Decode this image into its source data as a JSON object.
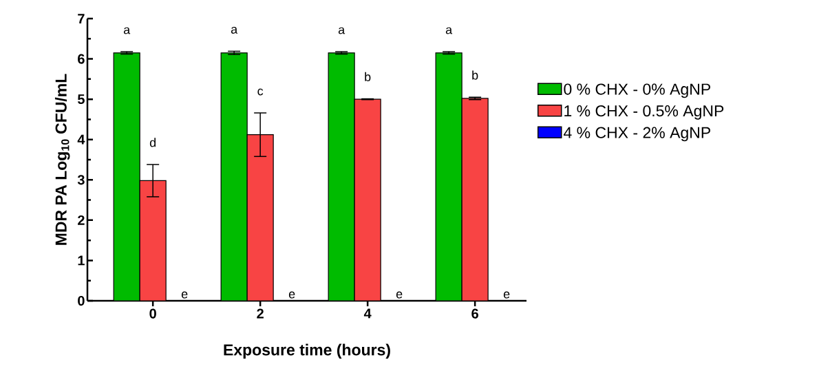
{
  "chart_data": {
    "type": "bar",
    "xlabel": "Exposure time (hours)",
    "ylabel": "MDR PA Log$_{10}$ CFU/mL",
    "categories": [
      "0",
      "2",
      "4",
      "6"
    ],
    "series": [
      {
        "name": "0 % CHX - 0% AgNP",
        "color": "#00bb00",
        "values": [
          6.15,
          6.15,
          6.15,
          6.15
        ],
        "errors": [
          0.03,
          0.04,
          0.03,
          0.03
        ]
      },
      {
        "name": "1 % CHX - 0.5% AgNP",
        "color": "#f84444",
        "values": [
          2.98,
          4.12,
          5.0,
          5.02
        ],
        "errors": [
          0.4,
          0.54,
          0.01,
          0.03
        ]
      },
      {
        "name": "4 % CHX - 2% AgNP",
        "color": "#0000ff",
        "values": [
          0,
          0,
          0,
          0
        ],
        "errors": [
          null,
          null,
          null,
          null
        ]
      }
    ],
    "ylim": [
      0,
      7
    ],
    "yticks": [
      0,
      1,
      2,
      3,
      4,
      5,
      6,
      7
    ],
    "legend": "right",
    "annotations": [
      "a",
      "d",
      "e",
      "a",
      "c",
      "e",
      "a",
      "b",
      "e",
      "a",
      "b",
      "e"
    ]
  }
}
